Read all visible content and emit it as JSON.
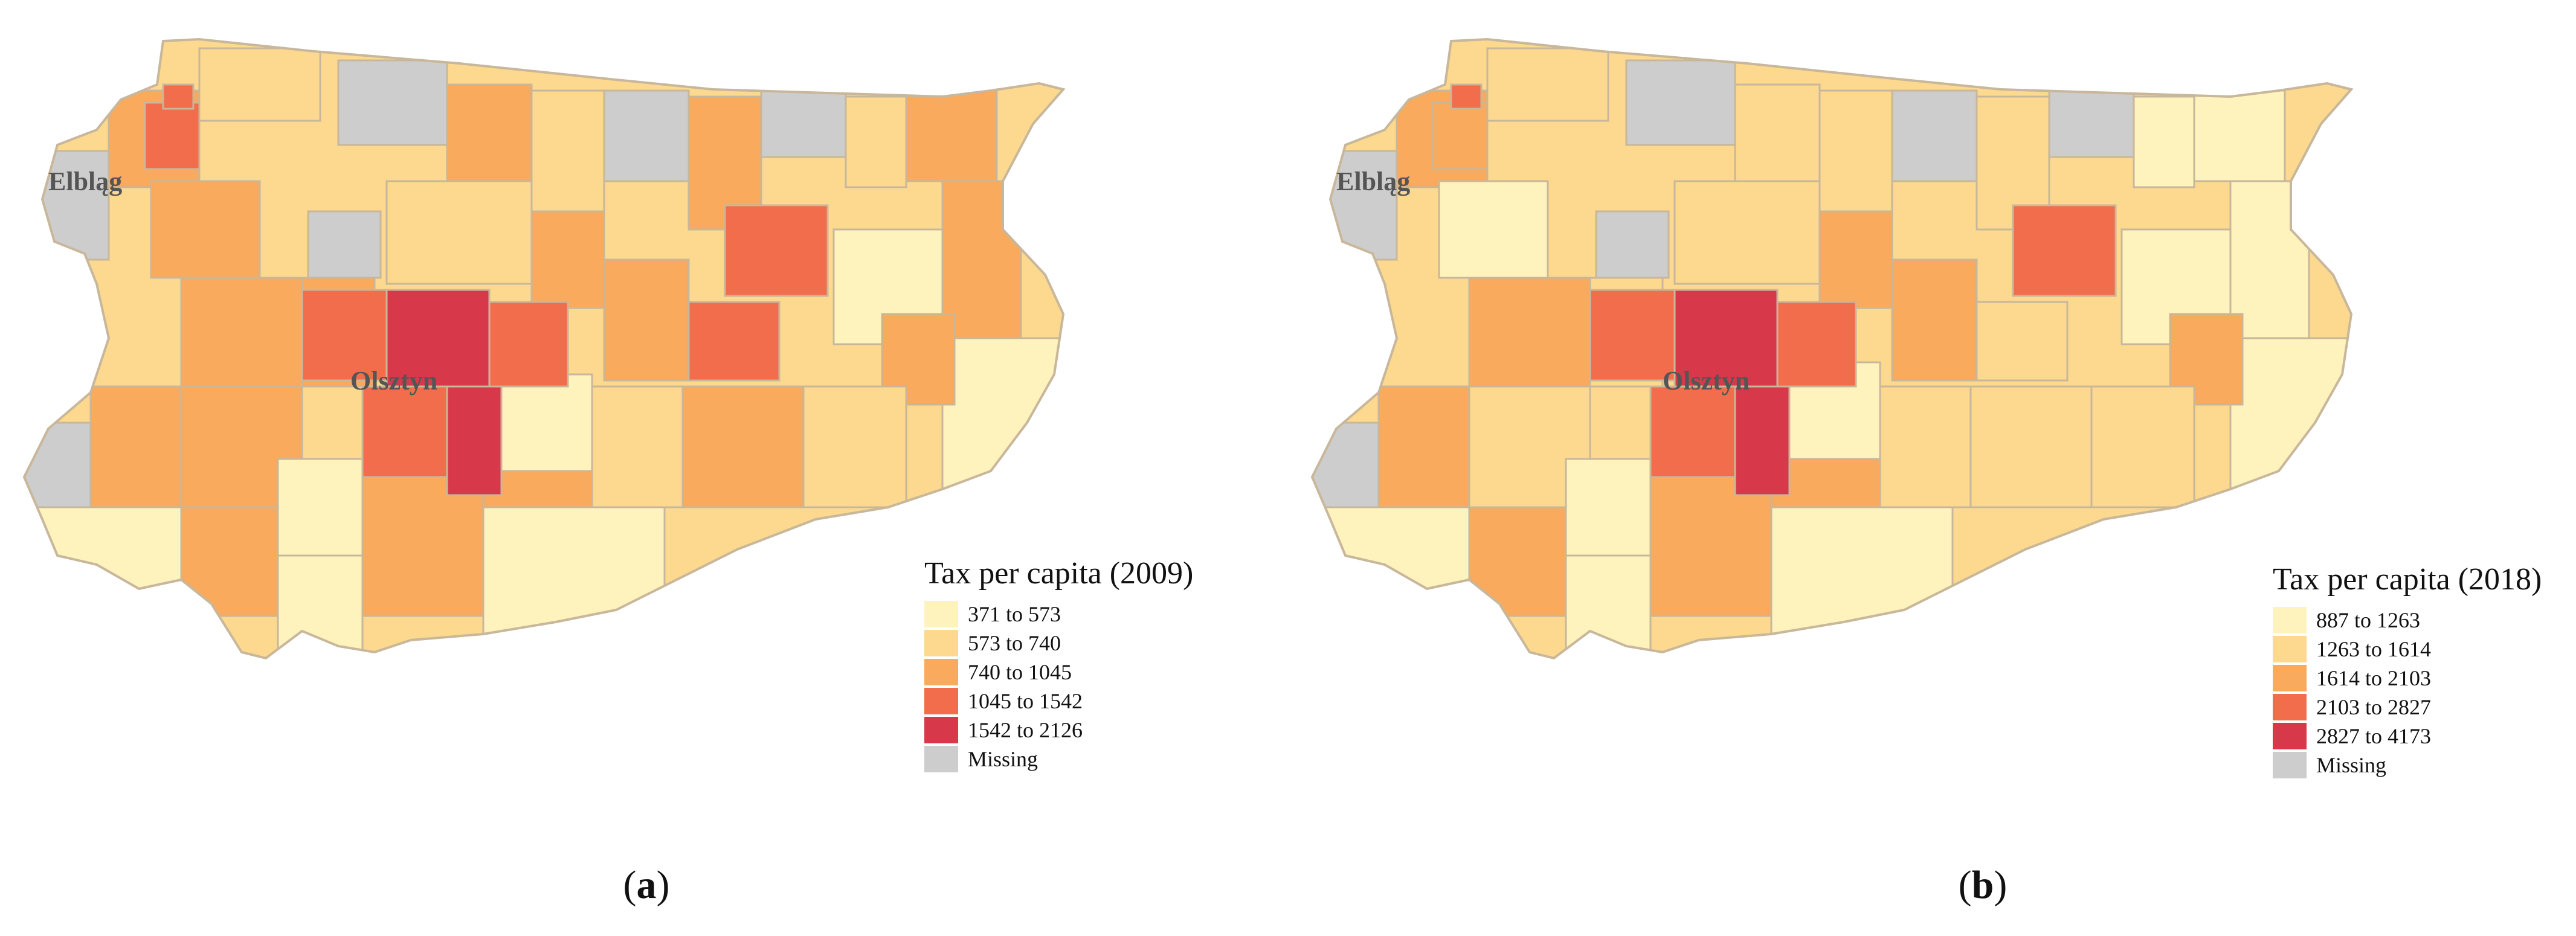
{
  "colors": {
    "c1": "#fef3bd",
    "c2": "#fcd98e",
    "c3": "#f9aa5c",
    "c4": "#f26d4b",
    "c5": "#d8394a",
    "missing": "#cdcdcd",
    "border": "#c8b79a"
  },
  "panels": [
    {
      "caption_letter": "a",
      "legend": {
        "title": "Tax per capita (2009)",
        "items": [
          {
            "label": "371 to 573",
            "color": "#fef3bd"
          },
          {
            "label": "573 to 740",
            "color": "#fcd98e"
          },
          {
            "label": "740 to 1045",
            "color": "#f9aa5c"
          },
          {
            "label": "1045 to 1542",
            "color": "#f26d4b"
          },
          {
            "label": "1542 to 2126",
            "color": "#d8394a"
          },
          {
            "label": "Missing",
            "color": "#cdcdcd"
          }
        ]
      },
      "cities": [
        "Elbląg",
        "Olsztyn"
      ]
    },
    {
      "caption_letter": "b",
      "legend": {
        "title": "Tax per capita (2018)",
        "items": [
          {
            "label": "887 to 1263",
            "color": "#fef3bd"
          },
          {
            "label": "1263 to 1614",
            "color": "#fcd98e"
          },
          {
            "label": "1614 to 2103",
            "color": "#f9aa5c"
          },
          {
            "label": "2103 to 2827",
            "color": "#f26d4b"
          },
          {
            "label": "2827 to 4173",
            "color": "#d8394a"
          },
          {
            "label": "Missing",
            "color": "#cdcdcd"
          }
        ]
      },
      "cities": [
        "Elbląg",
        "Olsztyn"
      ]
    }
  ]
}
